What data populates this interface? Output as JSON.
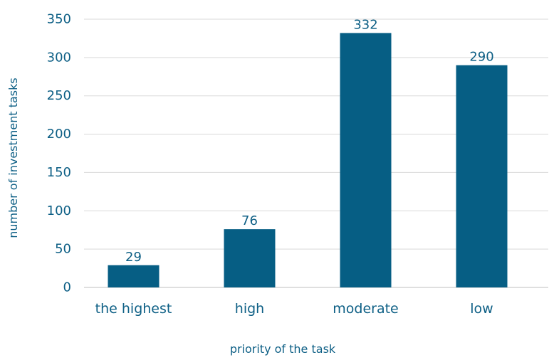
{
  "chart_data": {
    "type": "bar",
    "title": "",
    "xlabel": "priority of the task",
    "ylabel": "number of investment tasks",
    "categories": [
      "the highest",
      "high",
      "moderate",
      "low"
    ],
    "values": [
      29,
      76,
      332,
      290
    ],
    "data_labels": [
      "29",
      "76",
      "332",
      "290"
    ],
    "ylim": [
      0,
      350
    ],
    "yticks": [
      0,
      50,
      100,
      150,
      200,
      250,
      300,
      350
    ],
    "grid": true,
    "legend": "none",
    "colors": {
      "bar": "#065e84",
      "text": "#0d5f85",
      "grid": "#d9d9d9",
      "axis": "#bfbfbf"
    }
  }
}
